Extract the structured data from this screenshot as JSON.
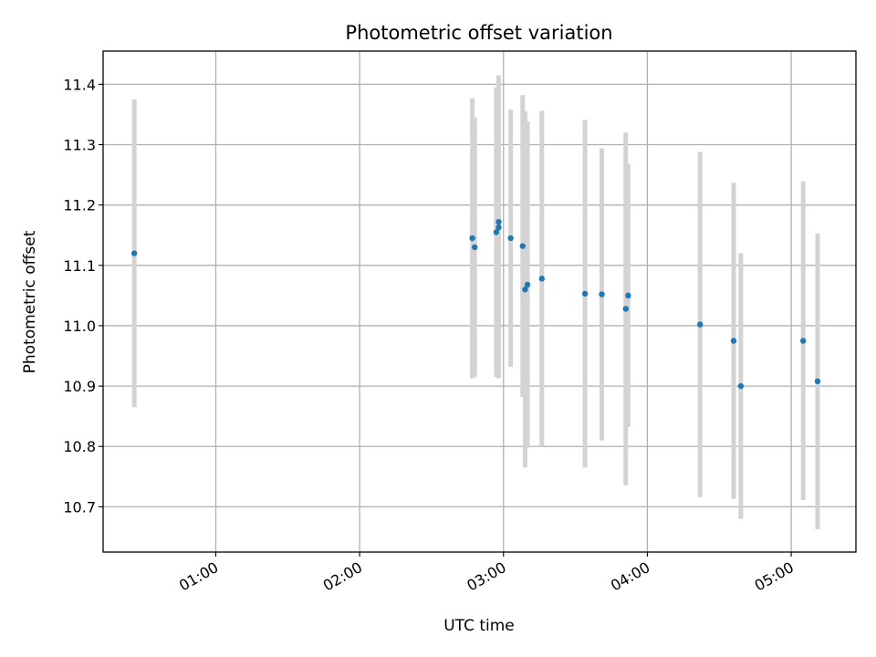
{
  "chart_data": {
    "type": "scatter",
    "title": "Photometric offset variation",
    "xlabel": "UTC time",
    "ylabel": "Photometric offset",
    "x_tick_labels": [
      "01:00",
      "02:00",
      "03:00",
      "04:00",
      "05:00"
    ],
    "x_ticks": [
      "01:00",
      "02:00",
      "03:00",
      "04:00",
      "05:00"
    ],
    "y_ticks": [
      10.7,
      10.8,
      10.9,
      11.0,
      11.1,
      11.2,
      11.3,
      11.4
    ],
    "y_tick_labels": [
      "10.7",
      "10.8",
      "10.9",
      "11.0",
      "11.1",
      "11.2",
      "11.3",
      "11.4"
    ],
    "xlim": [
      "00:13",
      "05:27"
    ],
    "ylim": [
      10.625,
      11.455
    ],
    "grid": true,
    "legend": "none",
    "series": [
      {
        "points": [
          {
            "x": "00:26",
            "y": 11.12,
            "err": 0.255
          },
          {
            "x": "02:47",
            "y": 11.145,
            "err": 0.232
          },
          {
            "x": "02:48",
            "y": 11.13,
            "err": 0.215
          },
          {
            "x": "02:57",
            "y": 11.155,
            "err": 0.24
          },
          {
            "x": "02:58",
            "y": 11.163,
            "err": 0.25
          },
          {
            "x": "02:58",
            "y": 11.172,
            "err": 0.243
          },
          {
            "x": "03:03",
            "y": 11.145,
            "err": 0.213
          },
          {
            "x": "03:08",
            "y": 11.132,
            "err": 0.25
          },
          {
            "x": "03:09",
            "y": 11.06,
            "err": 0.295
          },
          {
            "x": "03:10",
            "y": 11.068,
            "err": 0.27
          },
          {
            "x": "03:16",
            "y": 11.078,
            "err": 0.278
          },
          {
            "x": "03:34",
            "y": 11.053,
            "err": 0.288
          },
          {
            "x": "03:41",
            "y": 11.052,
            "err": 0.242
          },
          {
            "x": "03:51",
            "y": 11.028,
            "err": 0.292
          },
          {
            "x": "03:52",
            "y": 11.05,
            "err": 0.218
          },
          {
            "x": "04:22",
            "y": 11.002,
            "err": 0.286
          },
          {
            "x": "04:36",
            "y": 10.975,
            "err": 0.262
          },
          {
            "x": "04:39",
            "y": 10.9,
            "err": 0.22
          },
          {
            "x": "05:05",
            "y": 10.975,
            "err": 0.264
          },
          {
            "x": "05:11",
            "y": 10.908,
            "err": 0.245
          }
        ]
      }
    ],
    "colors": {
      "marker": "#1f77b4",
      "errorbar": "#d3d3d3",
      "grid": "#b0b0b0"
    }
  }
}
